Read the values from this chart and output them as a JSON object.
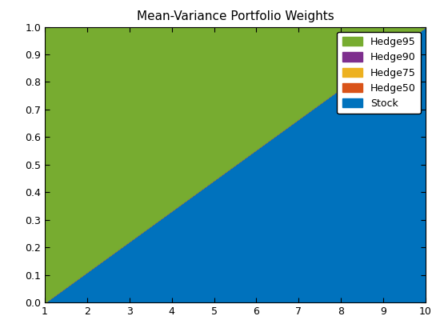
{
  "title": "Mean-Variance Portfolio Weights",
  "x": [
    1,
    2,
    3,
    4,
    5,
    6,
    7,
    8,
    9,
    10
  ],
  "stock_weights": [
    0.0,
    0.1111,
    0.2222,
    0.3333,
    0.4444,
    0.5556,
    0.6667,
    0.7778,
    0.8889,
    1.0
  ],
  "hedge50_weights": [
    0.0,
    0.0,
    0.0,
    0.0,
    0.0,
    0.0,
    0.0,
    0.0,
    0.0,
    0.0
  ],
  "hedge75_weights": [
    0.0,
    0.0,
    0.0,
    0.0,
    0.0,
    0.0,
    0.0,
    0.0,
    0.0,
    0.0
  ],
  "hedge90_weights": [
    0.0,
    0.0,
    0.0,
    0.0,
    0.0,
    0.0,
    0.0,
    0.0,
    0.0,
    0.0
  ],
  "hedge95_weights": [
    1.0,
    0.8889,
    0.7778,
    0.6667,
    0.5556,
    0.4444,
    0.3333,
    0.2222,
    0.1111,
    0.0
  ],
  "colors": {
    "Stock": "#0072BD",
    "Hedge50": "#D95319",
    "Hedge75": "#EDB120",
    "Hedge90": "#7E2F8E",
    "Hedge95": "#77AC30"
  },
  "xlim": [
    1,
    10
  ],
  "ylim": [
    0,
    1
  ],
  "xticks": [
    1,
    2,
    3,
    4,
    5,
    6,
    7,
    8,
    9,
    10
  ],
  "yticks": [
    0,
    0.1,
    0.2,
    0.3,
    0.4,
    0.5,
    0.6,
    0.7,
    0.8,
    0.9,
    1.0
  ],
  "legend_order": [
    "Hedge95",
    "Hedge90",
    "Hedge75",
    "Hedge50",
    "Stock"
  ],
  "legend_loc": "upper right",
  "figsize": [
    5.6,
    4.2
  ],
  "dpi": 100
}
